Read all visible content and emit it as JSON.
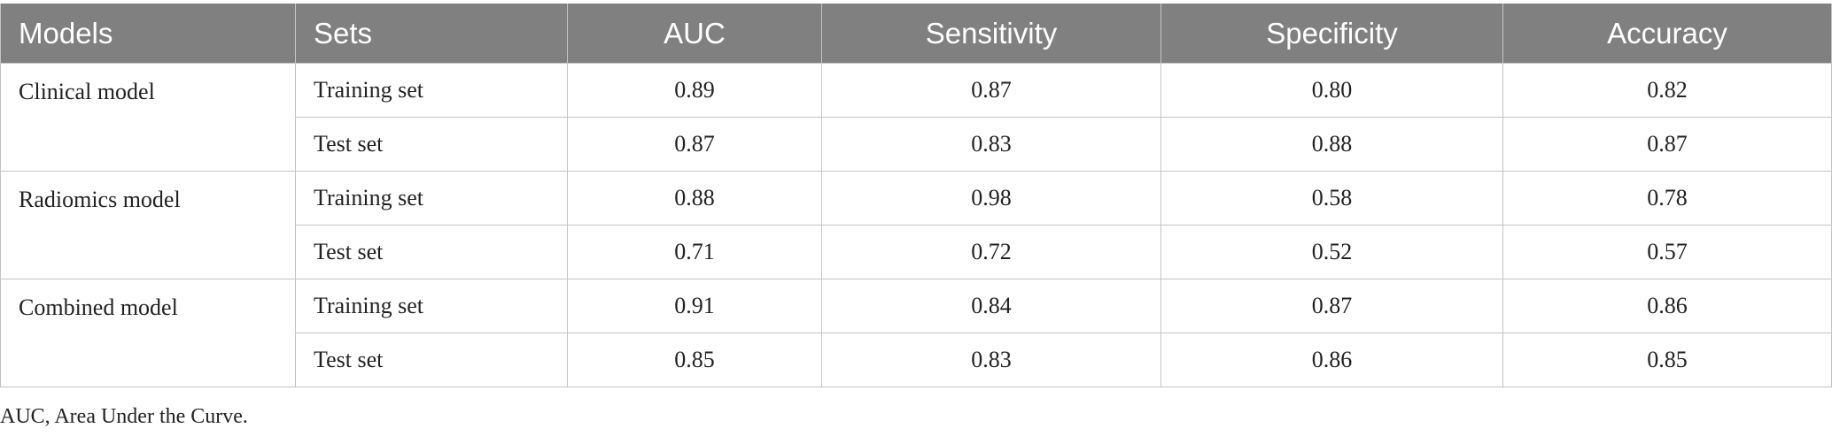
{
  "table": {
    "headers": [
      "Models",
      "Sets",
      "AUC",
      "Sensitivity",
      "Specificity",
      "Accuracy"
    ],
    "groups": [
      {
        "model": "Clinical model",
        "rows": [
          {
            "set": "Training set",
            "values": [
              "0.89",
              "0.87",
              "0.80",
              "0.82"
            ]
          },
          {
            "set": "Test set",
            "values": [
              "0.87",
              "0.83",
              "0.88",
              "0.87"
            ]
          }
        ]
      },
      {
        "model": "Radiomics model",
        "rows": [
          {
            "set": "Training set",
            "values": [
              "0.88",
              "0.98",
              "0.58",
              "0.78"
            ]
          },
          {
            "set": "Test set",
            "values": [
              "0.71",
              "0.72",
              "0.52",
              "0.57"
            ]
          }
        ]
      },
      {
        "model": "Combined model",
        "rows": [
          {
            "set": "Training set",
            "values": [
              "0.91",
              "0.84",
              "0.87",
              "0.86"
            ]
          },
          {
            "set": "Test set",
            "values": [
              "0.85",
              "0.83",
              "0.86",
              "0.85"
            ]
          }
        ]
      }
    ]
  },
  "footnote": "AUC, Area Under the Curve.",
  "colors": {
    "header_bg": "#808080",
    "header_text": "#ffffff",
    "border": "#c4c4c4"
  }
}
